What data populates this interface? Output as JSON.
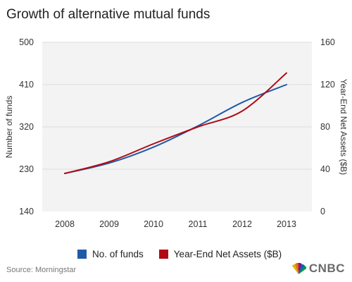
{
  "header": {
    "title": "Growth of alternative mutual funds"
  },
  "footer": {
    "source": "Source: Morningstar",
    "logo_text": "CNBC"
  },
  "colors": {
    "funds": "#1f5aa8",
    "assets": "#b00a14",
    "plot_bg": "#f3f3f3",
    "grid": "#dcdcdc"
  },
  "chart_data": {
    "type": "line",
    "x": [
      2008,
      2009,
      2010,
      2011,
      2012,
      2013
    ],
    "xticks": [
      "2008",
      "2009",
      "2010",
      "2011",
      "2012",
      "2013"
    ],
    "ylabel": "Number of funds",
    "y2label": "Year-End Net Assets ($B)",
    "ylim": [
      140,
      500
    ],
    "y2lim": [
      0,
      160
    ],
    "yticks": [
      "140",
      "230",
      "320",
      "410",
      "500"
    ],
    "y2ticks": [
      "0",
      "40",
      "80",
      "120",
      "160"
    ],
    "grid": true,
    "legend_position": "bottom",
    "series": [
      {
        "name": "No. of funds",
        "axis": "left",
        "values": [
          221,
          243,
          277,
          322,
          372,
          410
        ]
      },
      {
        "name": "Year-End Net Assets ($B)",
        "axis": "right",
        "values": [
          36,
          47,
          64,
          80,
          95,
          131
        ]
      }
    ]
  }
}
